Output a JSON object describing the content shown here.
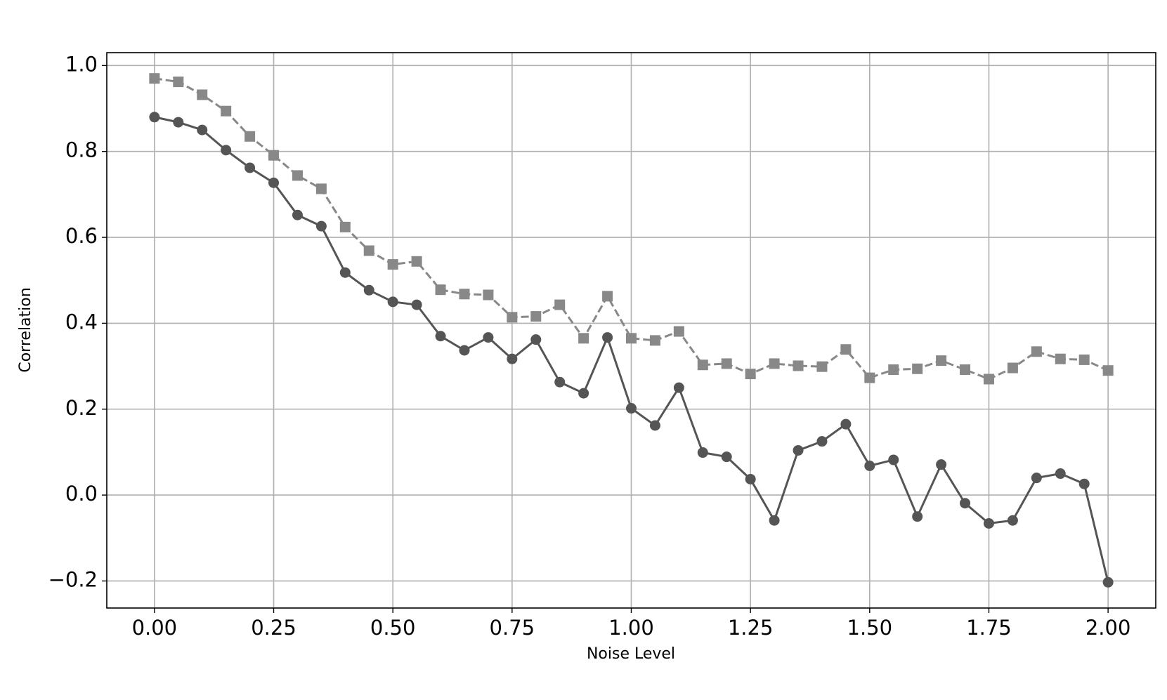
{
  "chart_data": {
    "type": "line",
    "xlabel": "Noise Level",
    "ylabel": "Correlation",
    "x": [
      0,
      0.05,
      0.1,
      0.15,
      0.2,
      0.25,
      0.3,
      0.35,
      0.4,
      0.45,
      0.5,
      0.55,
      0.6,
      0.65,
      0.7,
      0.75,
      0.8,
      0.85,
      0.9,
      0.95,
      1.0,
      1.05,
      1.1,
      1.15,
      1.2,
      1.25,
      1.3,
      1.35,
      1.4,
      1.45,
      1.5,
      1.55,
      1.6,
      1.65,
      1.7,
      1.75,
      1.8,
      1.85,
      1.9,
      1.95,
      2.0
    ],
    "series": [
      {
        "color": "#555555",
        "marker": "circle",
        "linestyle": "solid",
        "values": [
          0.88,
          0.868,
          0.85,
          0.803,
          0.762,
          0.727,
          0.652,
          0.626,
          0.518,
          0.477,
          0.45,
          0.443,
          0.37,
          0.337,
          0.367,
          0.317,
          0.362,
          0.263,
          0.237,
          0.367,
          0.202,
          0.162,
          0.25,
          0.099,
          0.089,
          0.037,
          -0.059,
          0.104,
          0.125,
          0.165,
          0.068,
          0.082,
          -0.05,
          0.071,
          -0.019,
          -0.066,
          -0.059,
          0.04,
          0.05,
          0.026,
          -0.203
        ]
      },
      {
        "color": "#888888",
        "marker": "square",
        "linestyle": "dashed",
        "values": [
          0.97,
          0.962,
          0.932,
          0.894,
          0.835,
          0.791,
          0.744,
          0.713,
          0.624,
          0.569,
          0.537,
          0.544,
          0.478,
          0.468,
          0.466,
          0.414,
          0.416,
          0.443,
          0.365,
          0.463,
          0.365,
          0.36,
          0.381,
          0.303,
          0.306,
          0.282,
          0.306,
          0.301,
          0.299,
          0.339,
          0.273,
          0.292,
          0.294,
          0.313,
          0.292,
          0.27,
          0.296,
          0.334,
          0.317,
          0.315,
          0.29
        ]
      }
    ],
    "xlim": [
      -0.1,
      2.1
    ],
    "ylim": [
      -0.263,
      1.03
    ],
    "xticks": [
      {
        "value": 0,
        "label": "0.00"
      },
      0.25,
      {
        "value": 0.5,
        "label": "0.50"
      },
      0.75,
      {
        "value": 1,
        "label": "1.00"
      },
      1.25,
      {
        "value": 1.5,
        "label": "1.50"
      },
      1.75,
      {
        "value": 2,
        "label": "2.00"
      }
    ],
    "yticks": [
      {
        "value": -0.2,
        "label": "−0.2"
      },
      {
        "value": 0,
        "label": "0.0"
      },
      0.2,
      0.4,
      0.6,
      0.8,
      {
        "value": 1,
        "label": "1.0"
      }
    ],
    "grid": true
  }
}
